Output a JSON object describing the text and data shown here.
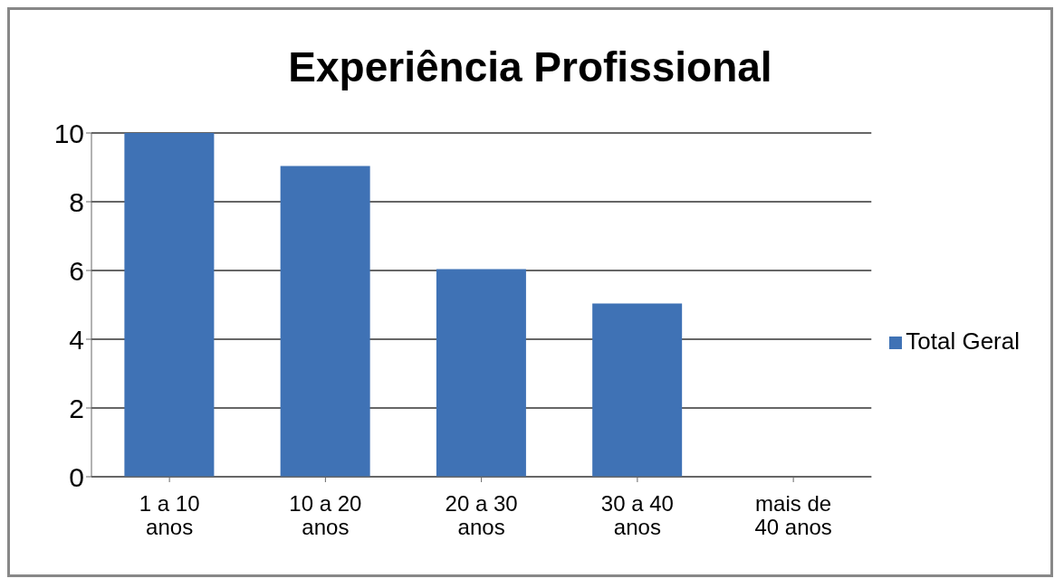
{
  "chart_data": {
    "type": "bar",
    "title": "Experiência Profissional",
    "categories": [
      "1 a 10 anos",
      "10 a 20 anos",
      "20 a 30 anos",
      "30 a 40 anos",
      "mais de 40 anos"
    ],
    "series": [
      {
        "name": "Total Geral",
        "color": "#3f72b5",
        "values": [
          10,
          9,
          6,
          5,
          0
        ]
      }
    ],
    "ylim": [
      0,
      10
    ],
    "yticks": [
      0,
      2,
      4,
      6,
      8,
      10
    ],
    "grid": "y",
    "legend": "right"
  }
}
